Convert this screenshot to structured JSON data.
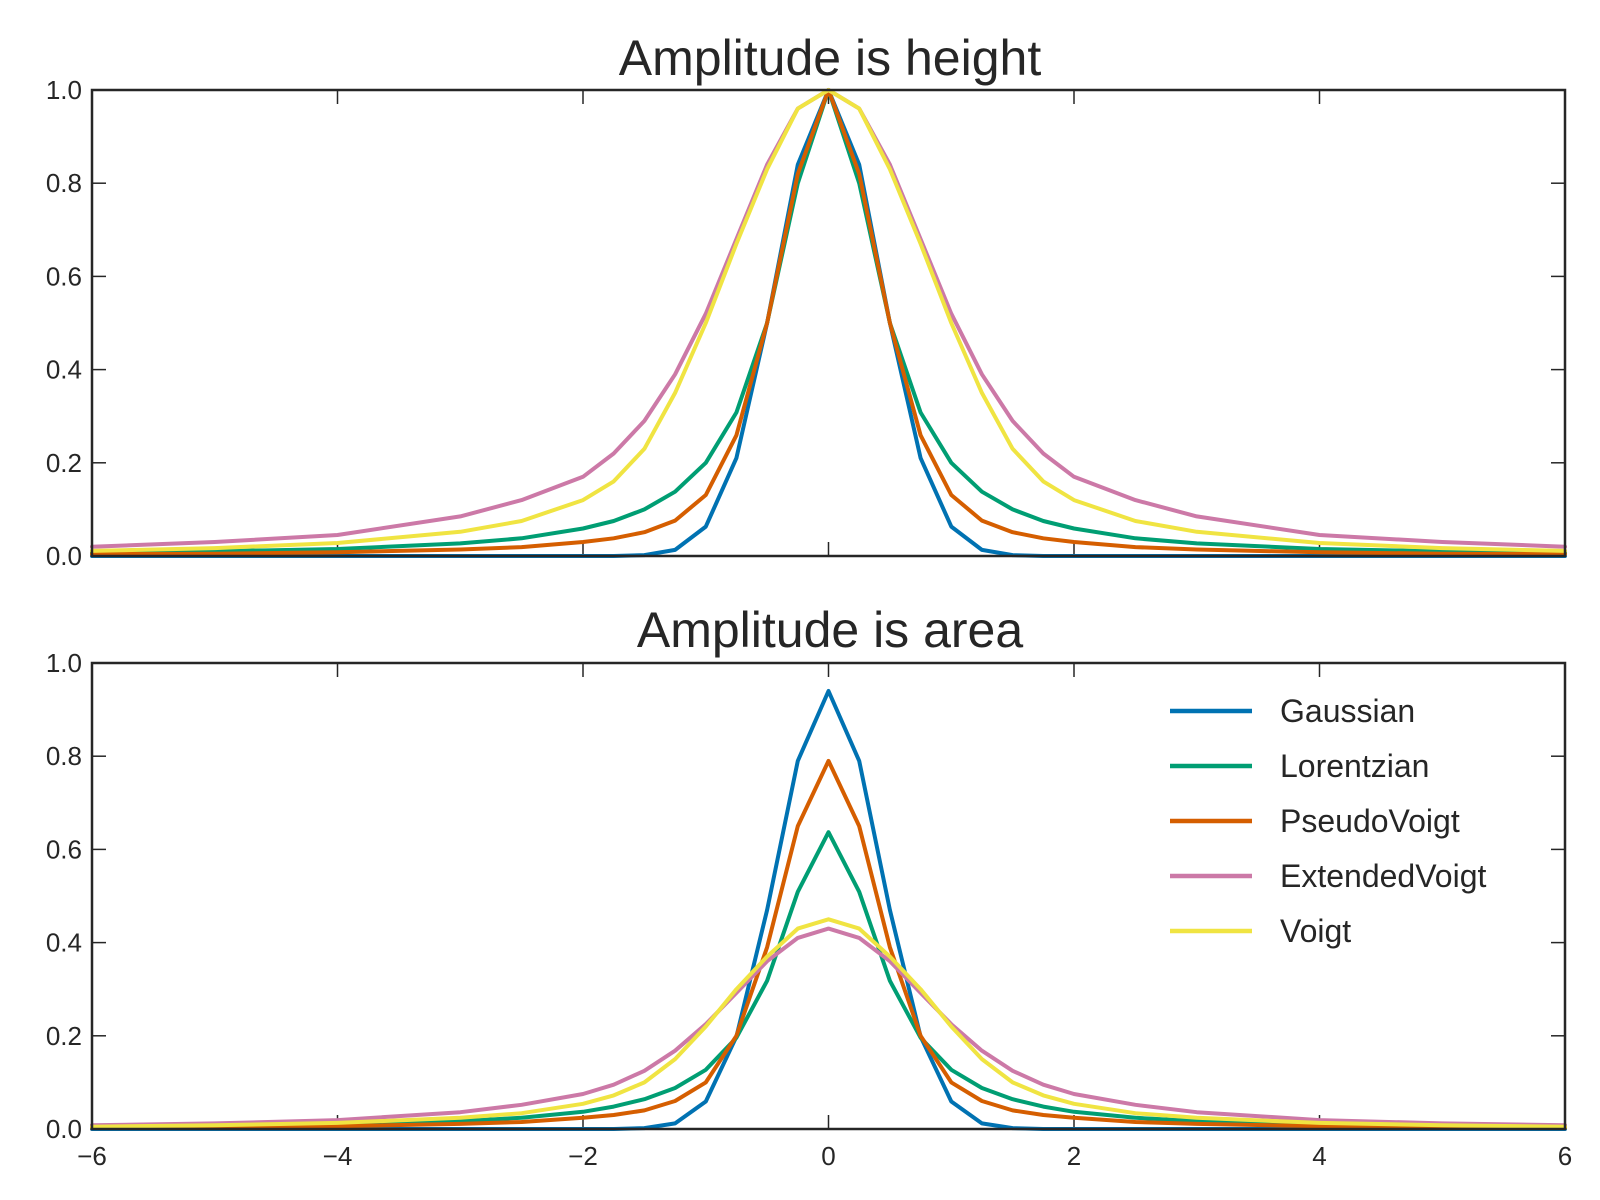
{
  "chart_data": [
    {
      "type": "line",
      "title": "Amplitude is height",
      "xlabel": "",
      "ylabel": "",
      "xlim": [
        -6,
        6
      ],
      "ylim": [
        0,
        1
      ],
      "xticks": [
        -6,
        -4,
        -2,
        0,
        2,
        4,
        6
      ],
      "xtick_labels_visible": false,
      "yticks": [
        0.0,
        0.2,
        0.4,
        0.6,
        0.8,
        1.0
      ],
      "ytick_labels": [
        "0.0",
        "0.2",
        "0.4",
        "0.6",
        "0.8",
        "1.0"
      ],
      "grid": false,
      "legend": false,
      "x": [
        -6,
        -5,
        -4,
        -3,
        -2.5,
        -2,
        -1.75,
        -1.5,
        -1.25,
        -1,
        -0.75,
        -0.5,
        -0.25,
        0,
        0.25,
        0.5,
        0.75,
        1,
        1.25,
        1.5,
        1.75,
        2,
        2.5,
        3,
        4,
        5,
        6
      ],
      "series": [
        {
          "name": "Gaussian",
          "color": "#0072b2",
          "values": [
            0,
            0,
            0,
            0,
            0,
            0,
            0,
            0.002,
            0.013,
            0.063,
            0.21,
            0.5,
            0.84,
            1,
            0.84,
            0.5,
            0.21,
            0.063,
            0.013,
            0.002,
            0,
            0,
            0,
            0,
            0,
            0,
            0
          ]
        },
        {
          "name": "Lorentzian",
          "color": "#009e73",
          "values": [
            0.007,
            0.01,
            0.015,
            0.027,
            0.038,
            0.059,
            0.075,
            0.1,
            0.138,
            0.2,
            0.308,
            0.5,
            0.8,
            1,
            0.8,
            0.5,
            0.308,
            0.2,
            0.138,
            0.1,
            0.075,
            0.059,
            0.038,
            0.027,
            0.015,
            0.01,
            0.007
          ]
        },
        {
          "name": "PseudoVoigt",
          "color": "#d55e00",
          "values": [
            0.004,
            0.005,
            0.008,
            0.014,
            0.019,
            0.03,
            0.038,
            0.051,
            0.076,
            0.131,
            0.259,
            0.5,
            0.82,
            1,
            0.82,
            0.5,
            0.259,
            0.131,
            0.076,
            0.051,
            0.038,
            0.03,
            0.019,
            0.014,
            0.008,
            0.005,
            0.004
          ]
        },
        {
          "name": "ExtendedVoigt",
          "color": "#cc79a7",
          "values": [
            0.02,
            0.03,
            0.045,
            0.085,
            0.12,
            0.17,
            0.22,
            0.29,
            0.39,
            0.52,
            0.68,
            0.84,
            0.96,
            1,
            0.96,
            0.84,
            0.68,
            0.52,
            0.39,
            0.29,
            0.22,
            0.17,
            0.12,
            0.085,
            0.045,
            0.03,
            0.02
          ]
        },
        {
          "name": "Voigt",
          "color": "#f0e442",
          "values": [
            0.011,
            0.017,
            0.028,
            0.052,
            0.075,
            0.12,
            0.16,
            0.23,
            0.35,
            0.5,
            0.67,
            0.83,
            0.96,
            1,
            0.96,
            0.83,
            0.67,
            0.5,
            0.35,
            0.23,
            0.16,
            0.12,
            0.075,
            0.052,
            0.028,
            0.017,
            0.011
          ]
        }
      ]
    },
    {
      "type": "line",
      "title": "Amplitude is area",
      "xlabel": "",
      "ylabel": "",
      "xlim": [
        -6,
        6
      ],
      "ylim": [
        0,
        1
      ],
      "xticks": [
        -6,
        -4,
        -2,
        0,
        2,
        4,
        6
      ],
      "xtick_labels": [
        "−6",
        "−4",
        "−2",
        "0",
        "2",
        "4",
        "6"
      ],
      "yticks": [
        0.0,
        0.2,
        0.4,
        0.6,
        0.8,
        1.0
      ],
      "ytick_labels": [
        "0.0",
        "0.2",
        "0.4",
        "0.6",
        "0.8",
        "1.0"
      ],
      "grid": false,
      "legend": "top-right",
      "x": [
        -6,
        -5,
        -4,
        -3,
        -2.5,
        -2,
        -1.75,
        -1.5,
        -1.25,
        -1,
        -0.75,
        -0.5,
        -0.25,
        0,
        0.25,
        0.5,
        0.75,
        1,
        1.25,
        1.5,
        1.75,
        2,
        2.5,
        3,
        4,
        5,
        6
      ],
      "series": [
        {
          "name": "Gaussian",
          "color": "#0072b2",
          "values": [
            0,
            0,
            0,
            0,
            0,
            0,
            0,
            0.002,
            0.012,
            0.059,
            0.198,
            0.47,
            0.79,
            0.94,
            0.79,
            0.47,
            0.198,
            0.059,
            0.012,
            0.002,
            0,
            0,
            0,
            0,
            0,
            0,
            0
          ]
        },
        {
          "name": "Lorentzian",
          "color": "#009e73",
          "values": [
            0.004,
            0.006,
            0.01,
            0.017,
            0.024,
            0.037,
            0.048,
            0.064,
            0.088,
            0.127,
            0.196,
            0.318,
            0.509,
            0.637,
            0.509,
            0.318,
            0.196,
            0.127,
            0.088,
            0.064,
            0.048,
            0.037,
            0.024,
            0.017,
            0.01,
            0.006,
            0.004
          ]
        },
        {
          "name": "PseudoVoigt",
          "color": "#d55e00",
          "values": [
            0.003,
            0.004,
            0.006,
            0.011,
            0.015,
            0.024,
            0.03,
            0.04,
            0.06,
            0.1,
            0.2,
            0.39,
            0.65,
            0.79,
            0.65,
            0.39,
            0.2,
            0.1,
            0.06,
            0.04,
            0.03,
            0.024,
            0.015,
            0.011,
            0.006,
            0.004,
            0.003
          ]
        },
        {
          "name": "ExtendedVoigt",
          "color": "#cc79a7",
          "values": [
            0.008,
            0.012,
            0.019,
            0.036,
            0.052,
            0.075,
            0.095,
            0.125,
            0.168,
            0.225,
            0.292,
            0.36,
            0.41,
            0.43,
            0.41,
            0.36,
            0.292,
            0.225,
            0.168,
            0.125,
            0.095,
            0.075,
            0.052,
            0.036,
            0.019,
            0.012,
            0.008
          ]
        },
        {
          "name": "Voigt",
          "color": "#f0e442",
          "values": [
            0.005,
            0.008,
            0.013,
            0.024,
            0.034,
            0.054,
            0.072,
            0.1,
            0.15,
            0.22,
            0.3,
            0.37,
            0.43,
            0.45,
            0.43,
            0.37,
            0.3,
            0.22,
            0.15,
            0.1,
            0.072,
            0.054,
            0.034,
            0.024,
            0.013,
            0.008,
            0.005
          ]
        }
      ]
    }
  ]
}
